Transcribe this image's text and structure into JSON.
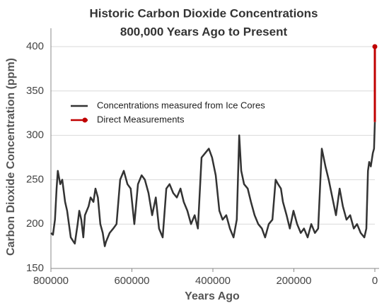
{
  "chart_data": {
    "type": "line",
    "title": "Historic Carbon Dioxide Concentrations",
    "subtitle": "800,000 Years Ago to Present",
    "x_label": "Years Ago",
    "y_label": "Carbon Dioxide Concentration (ppm)",
    "xlim": [
      800000,
      0
    ],
    "xticks": [
      800000,
      600000,
      400000,
      200000,
      0
    ],
    "ylim": [
      150,
      400
    ],
    "yticks": [
      150,
      200,
      250,
      300,
      350,
      400
    ],
    "grid": true,
    "legend": "upper left",
    "series": [
      {
        "name": "Concentrations measured from Ice Cores",
        "color": "#333333",
        "x": [
          800000,
          795000,
          790000,
          786000,
          783000,
          777000,
          772000,
          765000,
          760000,
          751000,
          744000,
          741000,
          734000,
          730000,
          725000,
          720000,
          716000,
          707000,
          702000,
          695000,
          690000,
          684000,
          678000,
          672000,
          667000,
          664000,
          655000,
          646000,
          638000,
          629000,
          620000,
          611000,
          603000,
          594000,
          585000,
          576000,
          568000,
          559000,
          550000,
          541000,
          533000,
          524000,
          515000,
          507000,
          498000,
          489000,
          480000,
          472000,
          463000,
          454000,
          445000,
          437000,
          428000,
          419000,
          410000,
          402000,
          393000,
          384000,
          376000,
          367000,
          358000,
          349000,
          341000,
          335000,
          330000,
          323000,
          314000,
          306000,
          297000,
          288000,
          279000,
          271000,
          262000,
          253000,
          245000,
          239000,
          232000,
          227000,
          218000,
          210000,
          201000,
          192000,
          183000,
          175000,
          166000,
          157000,
          148000,
          140000,
          131000,
          122000,
          114000,
          105000,
          96000,
          87000,
          79000,
          70000,
          61000,
          52000,
          44000,
          35000,
          26000,
          21000,
          17000,
          14000,
          10000,
          5000,
          2000,
          0
        ],
        "values": [
          190,
          188,
          205,
          240,
          260,
          245,
          250,
          225,
          215,
          185,
          180,
          178,
          200,
          215,
          205,
          185,
          210,
          220,
          230,
          225,
          240,
          230,
          200,
          190,
          175,
          180,
          190,
          195,
          200,
          250,
          260,
          245,
          240,
          200,
          245,
          255,
          250,
          235,
          210,
          230,
          195,
          185,
          240,
          245,
          235,
          230,
          240,
          225,
          215,
          200,
          210,
          195,
          275,
          280,
          285,
          275,
          255,
          215,
          205,
          210,
          195,
          185,
          205,
          300,
          260,
          245,
          240,
          225,
          210,
          200,
          195,
          185,
          200,
          205,
          250,
          245,
          240,
          225,
          210,
          195,
          215,
          200,
          190,
          195,
          185,
          200,
          190,
          195,
          285,
          265,
          250,
          230,
          210,
          240,
          220,
          205,
          210,
          195,
          200,
          190,
          185,
          195,
          260,
          270,
          265,
          280,
          285,
          315
        ]
      },
      {
        "name": "Direct Measurements",
        "color": "#c00000",
        "x": [
          0,
          0
        ],
        "values": [
          315,
          400
        ]
      }
    ]
  }
}
